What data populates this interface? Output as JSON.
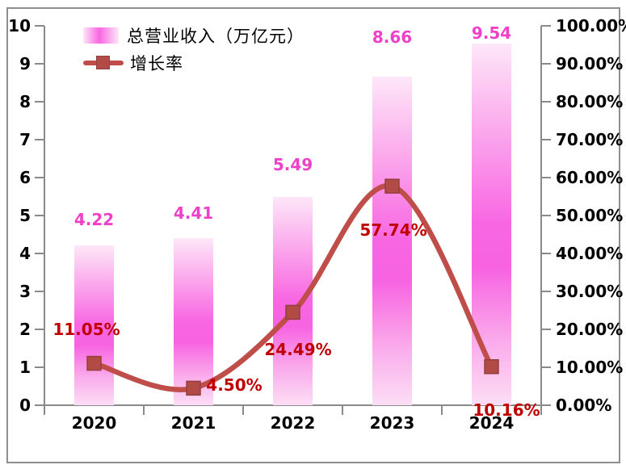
{
  "chart_data": {
    "type": "combo",
    "categories": [
      "2020",
      "2021",
      "2022",
      "2023",
      "2024"
    ],
    "series": [
      {
        "name": "总营业收入（万亿元）",
        "type": "bar",
        "axis": "left",
        "values": [
          4.22,
          4.41,
          5.49,
          8.66,
          9.54
        ],
        "labels": [
          "4.22",
          "4.41",
          "5.49",
          "8.66",
          "9.54"
        ]
      },
      {
        "name": "增长率",
        "type": "line",
        "axis": "right",
        "values": [
          11.05,
          4.5,
          24.49,
          57.74,
          10.16
        ],
        "labels": [
          "11.05%",
          "4.50%",
          "24.49%",
          "57.74%",
          "10.16%"
        ]
      }
    ],
    "left_axis": {
      "min": 0,
      "max": 10,
      "step": 1,
      "tick_labels": [
        "0",
        "1",
        "2",
        "3",
        "4",
        "5",
        "6",
        "7",
        "8",
        "9",
        "10"
      ]
    },
    "right_axis": {
      "min": 0,
      "max": 100,
      "step": 10,
      "tick_labels": [
        "0.00%",
        "10.00%",
        "20.00%",
        "30.00%",
        "40.00%",
        "50.00%",
        "60.00%",
        "70.00%",
        "80.00%",
        "90.00%",
        "100.00%"
      ]
    },
    "title": "",
    "grid": false,
    "legend_position": "top-left",
    "colors": {
      "bar_peak": "#f866e2",
      "bar_light": "#fde7f8",
      "bar_label": "#ee40c8",
      "line": "#bf4e4a",
      "marker_fill": "#b24a46",
      "marker_stroke": "#93403c",
      "growth_label": "#c00000",
      "axis": "#8a8a8a",
      "text": "#000000"
    }
  },
  "legend": {
    "items": [
      {
        "label": "总营业收入（万亿元）",
        "swatch": "bar-gradient"
      },
      {
        "label": "增长率",
        "swatch": "line-marker"
      }
    ]
  }
}
